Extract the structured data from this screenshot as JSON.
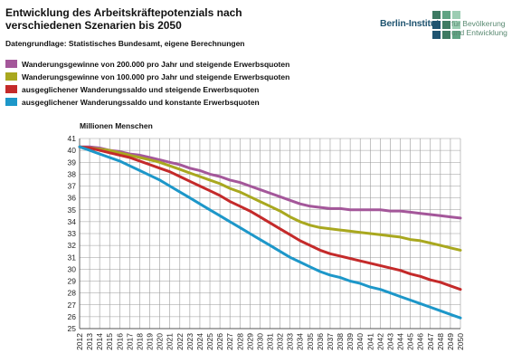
{
  "header": {
    "title": "Entwicklung des Arbeitskräftepotenzials nach verschiedenen Szenarien bis 2050",
    "source": "Datengrundlage: Statistisches Bundesamt, eigene Berechnungen"
  },
  "logo": {
    "name": "Berlin-Institut",
    "subtitle_line1": "für Bevölkerung",
    "subtitle_line2": "und Entwicklung",
    "colors": [
      "#3e7a63",
      "#5fa383",
      "#9ccdb3",
      "#1f5470",
      "#3e7a63",
      "#9ccdb3",
      "#1f5470",
      "#3e7a63",
      "#5fa383"
    ]
  },
  "chart_data": {
    "type": "line",
    "ylabel": "Millionen Menschen",
    "xlabel": "",
    "ylim": [
      25,
      41
    ],
    "grid": true,
    "legend_position": "top-left",
    "x": [
      2012,
      2013,
      2014,
      2015,
      2016,
      2017,
      2018,
      2019,
      2020,
      2021,
      2022,
      2023,
      2024,
      2025,
      2026,
      2027,
      2028,
      2029,
      2030,
      2031,
      2032,
      2033,
      2034,
      2035,
      2036,
      2037,
      2038,
      2039,
      2040,
      2041,
      2042,
      2043,
      2044,
      2045,
      2046,
      2047,
      2048,
      2049,
      2050
    ],
    "y_ticks": [
      25,
      26,
      27,
      28,
      29,
      30,
      31,
      32,
      33,
      34,
      35,
      36,
      37,
      38,
      39,
      40,
      41
    ],
    "series": [
      {
        "name": "Wanderungsgewinne von 200.000 pro Jahr und steigende Erwerbsquoten",
        "color": "#a4579a",
        "values": [
          40.3,
          40.3,
          40.2,
          40.0,
          39.9,
          39.7,
          39.6,
          39.4,
          39.2,
          39.0,
          38.8,
          38.5,
          38.3,
          38.0,
          37.8,
          37.5,
          37.3,
          37.0,
          36.7,
          36.4,
          36.1,
          35.8,
          35.5,
          35.3,
          35.2,
          35.1,
          35.1,
          35.0,
          35.0,
          35.0,
          35.0,
          34.9,
          34.9,
          34.8,
          34.7,
          34.6,
          34.5,
          34.4,
          34.3
        ]
      },
      {
        "name": "Wanderungsgewinne von 100.000 pro Jahr und steigende Erwerbsquoten",
        "color": "#a9a81f",
        "values": [
          40.3,
          40.2,
          40.1,
          40.0,
          39.8,
          39.6,
          39.4,
          39.2,
          39.0,
          38.7,
          38.4,
          38.1,
          37.8,
          37.5,
          37.2,
          36.8,
          36.5,
          36.1,
          35.7,
          35.3,
          34.9,
          34.4,
          34.0,
          33.7,
          33.5,
          33.4,
          33.3,
          33.2,
          33.1,
          33.0,
          32.9,
          32.8,
          32.7,
          32.5,
          32.4,
          32.2,
          32.0,
          31.8,
          31.6
        ]
      },
      {
        "name": "ausgeglichener Wanderungssaldo und steigende Erwerbsquoten",
        "color": "#c42a2a",
        "values": [
          40.3,
          40.2,
          40.0,
          39.8,
          39.6,
          39.4,
          39.1,
          38.8,
          38.5,
          38.2,
          37.8,
          37.4,
          37.0,
          36.6,
          36.2,
          35.7,
          35.3,
          34.9,
          34.4,
          33.9,
          33.4,
          32.9,
          32.4,
          32.0,
          31.6,
          31.3,
          31.1,
          30.9,
          30.7,
          30.5,
          30.3,
          30.1,
          29.9,
          29.6,
          29.4,
          29.1,
          28.9,
          28.6,
          28.3
        ]
      },
      {
        "name": "ausgeglichener Wanderungssaldo und konstante Erwerbsquoten",
        "color": "#1d97c9",
        "values": [
          40.3,
          40.0,
          39.7,
          39.4,
          39.1,
          38.7,
          38.3,
          37.9,
          37.5,
          37.0,
          36.5,
          36.0,
          35.5,
          35.0,
          34.5,
          34.0,
          33.5,
          33.0,
          32.5,
          32.0,
          31.5,
          31.0,
          30.6,
          30.2,
          29.8,
          29.5,
          29.3,
          29.0,
          28.8,
          28.5,
          28.3,
          28.0,
          27.7,
          27.4,
          27.1,
          26.8,
          26.5,
          26.2,
          25.9
        ]
      }
    ]
  }
}
